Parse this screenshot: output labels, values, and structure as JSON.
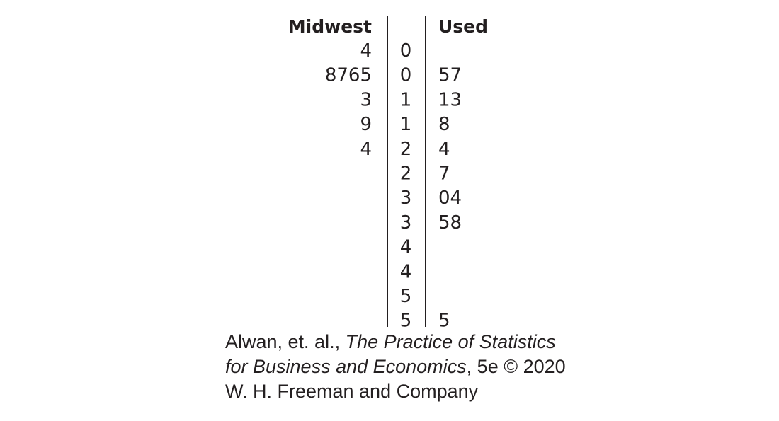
{
  "chart_data": {
    "type": "table",
    "left_label": "Midwest",
    "right_label": "Used",
    "rows": [
      {
        "stem": "0",
        "left": "4",
        "right": ""
      },
      {
        "stem": "0",
        "left": "8765",
        "right": "57"
      },
      {
        "stem": "1",
        "left": "3",
        "right": "13"
      },
      {
        "stem": "1",
        "left": "9",
        "right": "8"
      },
      {
        "stem": "2",
        "left": "4",
        "right": "4"
      },
      {
        "stem": "2",
        "left": "",
        "right": "7"
      },
      {
        "stem": "3",
        "left": "",
        "right": "04"
      },
      {
        "stem": "3",
        "left": "",
        "right": "58"
      },
      {
        "stem": "4",
        "left": "",
        "right": ""
      },
      {
        "stem": "4",
        "left": "",
        "right": ""
      },
      {
        "stem": "5",
        "left": "",
        "right": ""
      },
      {
        "stem": "5",
        "left": "",
        "right": "5"
      }
    ]
  },
  "credit": {
    "line1_plain": "Alwan, et. al., ",
    "line1_italic": "The Practice of Statistics",
    "line2_italic": "for Business and Economics",
    "line2_plain": ", 5e © 2020",
    "line3": "W. H. Freeman and Company"
  }
}
